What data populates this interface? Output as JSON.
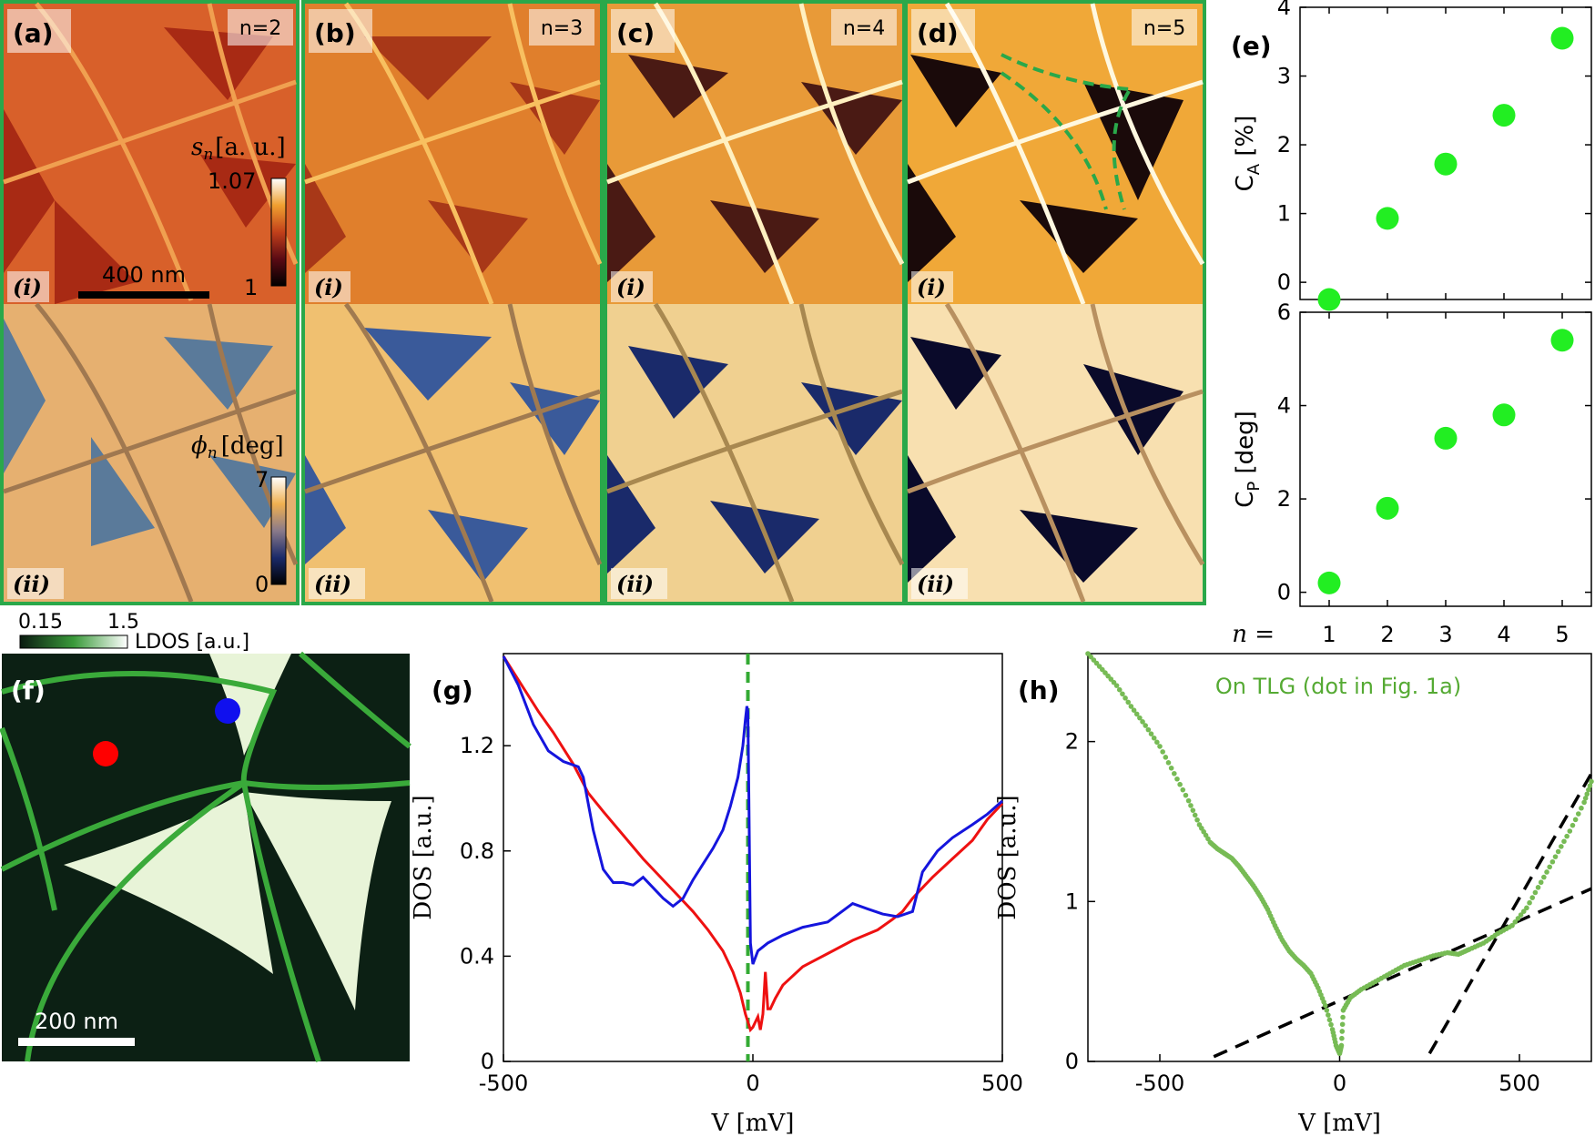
{
  "figure": {
    "panels_top": [
      {
        "letter": "(a)",
        "order": "n=2",
        "sub_i": "(i)",
        "sub_ii": "(ii)"
      },
      {
        "letter": "(b)",
        "order": "n=3",
        "sub_i": "(i)",
        "sub_ii": "(ii)"
      },
      {
        "letter": "(c)",
        "order": "n=4",
        "sub_i": "(i)",
        "sub_ii": "(ii)"
      },
      {
        "letter": "(d)",
        "order": "n=5",
        "sub_i": "(i)",
        "sub_ii": "(ii)"
      }
    ],
    "amplitude_colorbar": {
      "label": "s",
      "label_sub": "n",
      "unit": "[a. u.]",
      "max": "1.07",
      "min": "1"
    },
    "phase_colorbar": {
      "label": "ϕ",
      "label_sub": "n",
      "unit": "[deg]",
      "max": "7",
      "min": "0"
    },
    "scalebar_top": "400 nm",
    "panel_e": {
      "letter": "(e)",
      "n_label": "n =",
      "n_values": [
        "1",
        "2",
        "3",
        "4",
        "5"
      ]
    },
    "panel_f": {
      "letter": "(f)",
      "colorbar_min": "0.15",
      "colorbar_max": "1.5",
      "colorbar_label": "LDOS [a.u.]",
      "scalebar": "200 nm",
      "dot_colors": [
        "#ff0000",
        "#1010ee"
      ]
    },
    "panel_g": {
      "letter": "(g)"
    },
    "panel_h": {
      "letter": "(h)",
      "annotation": "On TLG (dot in Fig. 1a)"
    }
  },
  "chart_data": [
    {
      "id": "e-top",
      "type": "scatter",
      "title": "",
      "xlabel": "",
      "ylabel_main": "C",
      "ylabel_sub": "A",
      "ylabel_unit": "[%]",
      "x": [
        1,
        2,
        3,
        4,
        5
      ],
      "y": [
        -0.25,
        0.93,
        1.72,
        2.43,
        3.55
      ],
      "xlim": [
        0.5,
        5.5
      ],
      "ylim": [
        -0.25,
        4
      ],
      "yticks": [
        0,
        1,
        2,
        3,
        4
      ],
      "marker_color": "#22ee22"
    },
    {
      "id": "e-bottom",
      "type": "scatter",
      "title": "",
      "xlabel": "",
      "ylabel_main": "C",
      "ylabel_sub": "P",
      "ylabel_unit": "[deg]",
      "x": [
        1,
        2,
        3,
        4,
        5
      ],
      "y": [
        0.2,
        1.8,
        3.3,
        3.8,
        5.4
      ],
      "xlim": [
        0.5,
        5.5
      ],
      "ylim": [
        -0.3,
        6
      ],
      "yticks": [
        0,
        2,
        4,
        6
      ],
      "marker_color": "#22ee22"
    },
    {
      "id": "g",
      "type": "line",
      "title": "",
      "xlabel": "V [mV]",
      "ylabel": "DOS [a.u.]",
      "xlim": [
        -500,
        500
      ],
      "ylim": [
        0,
        1.55
      ],
      "xticks": [
        -500,
        0,
        500
      ],
      "yticks": [
        0,
        0.4,
        0.8,
        1.2
      ],
      "vline": {
        "x": -10,
        "color": "#33aa33"
      },
      "series": [
        {
          "color": "#ee1111",
          "x": [
            -500,
            -470,
            -430,
            -400,
            -360,
            -330,
            -300,
            -260,
            -220,
            -180,
            -150,
            -120,
            -90,
            -60,
            -40,
            -25,
            -15,
            -5,
            0,
            10,
            15,
            20,
            25,
            30,
            35,
            45,
            60,
            100,
            150,
            200,
            250,
            280,
            300,
            320,
            340,
            360,
            400,
            440,
            470,
            500
          ],
          "y": [
            1.54,
            1.45,
            1.33,
            1.25,
            1.13,
            1.02,
            0.95,
            0.86,
            0.77,
            0.69,
            0.63,
            0.57,
            0.5,
            0.42,
            0.34,
            0.26,
            0.18,
            0.12,
            0.13,
            0.17,
            0.12,
            0.18,
            0.34,
            0.2,
            0.2,
            0.24,
            0.29,
            0.36,
            0.41,
            0.46,
            0.5,
            0.54,
            0.57,
            0.62,
            0.66,
            0.7,
            0.77,
            0.84,
            0.92,
            0.98
          ]
        },
        {
          "color": "#1515dd",
          "x": [
            -500,
            -470,
            -440,
            -410,
            -380,
            -350,
            -340,
            -320,
            -300,
            -280,
            -260,
            -240,
            -220,
            -200,
            -180,
            -160,
            -140,
            -120,
            -100,
            -80,
            -60,
            -45,
            -30,
            -20,
            -15,
            -12,
            -10,
            -8,
            -5,
            0,
            10,
            30,
            60,
            100,
            150,
            200,
            230,
            260,
            290,
            320,
            340,
            370,
            400,
            440,
            470,
            500
          ],
          "y": [
            1.54,
            1.43,
            1.28,
            1.18,
            1.14,
            1.12,
            1.08,
            0.88,
            0.73,
            0.68,
            0.68,
            0.67,
            0.7,
            0.66,
            0.62,
            0.59,
            0.62,
            0.69,
            0.75,
            0.81,
            0.88,
            0.97,
            1.08,
            1.2,
            1.3,
            1.35,
            1.33,
            1.0,
            0.45,
            0.37,
            0.42,
            0.45,
            0.48,
            0.51,
            0.53,
            0.6,
            0.58,
            0.56,
            0.55,
            0.57,
            0.72,
            0.8,
            0.85,
            0.9,
            0.94,
            0.99
          ]
        }
      ]
    },
    {
      "id": "h",
      "type": "scatter",
      "title": "",
      "xlabel": "V [mV]",
      "ylabel": "DOS [a.u.]",
      "xlim": [
        -700,
        700
      ],
      "ylim": [
        0,
        2.55
      ],
      "xticks": [
        -500,
        0,
        500
      ],
      "yticks": [
        0,
        1,
        2
      ],
      "series": [
        {
          "color": "#77bb55",
          "x": [
            -700,
            -660,
            -620,
            -580,
            -540,
            -500,
            -460,
            -420,
            -390,
            -360,
            -340,
            -320,
            -300,
            -280,
            -260,
            -240,
            -220,
            -200,
            -180,
            -160,
            -140,
            -120,
            -100,
            -80,
            -60,
            -40,
            -20,
            -10,
            0,
            5,
            10,
            30,
            60,
            100,
            140,
            180,
            220,
            260,
            300,
            330,
            360,
            400,
            440,
            480,
            520,
            560,
            600,
            640,
            680,
            700
          ],
          "y": [
            2.55,
            2.45,
            2.35,
            2.22,
            2.1,
            1.97,
            1.8,
            1.63,
            1.48,
            1.37,
            1.33,
            1.3,
            1.27,
            1.22,
            1.16,
            1.1,
            1.03,
            0.95,
            0.85,
            0.76,
            0.69,
            0.64,
            0.6,
            0.55,
            0.46,
            0.35,
            0.2,
            0.1,
            0.05,
            0.1,
            0.32,
            0.4,
            0.45,
            0.5,
            0.55,
            0.6,
            0.63,
            0.66,
            0.68,
            0.67,
            0.7,
            0.74,
            0.8,
            0.85,
            0.96,
            1.12,
            1.28,
            1.44,
            1.62,
            1.75
          ]
        }
      ],
      "fit_lines": [
        {
          "x": [
            -350,
            700
          ],
          "y": [
            0.03,
            1.08
          ]
        },
        {
          "x": [
            250,
            700
          ],
          "y": [
            0.05,
            1.8
          ]
        }
      ]
    }
  ]
}
